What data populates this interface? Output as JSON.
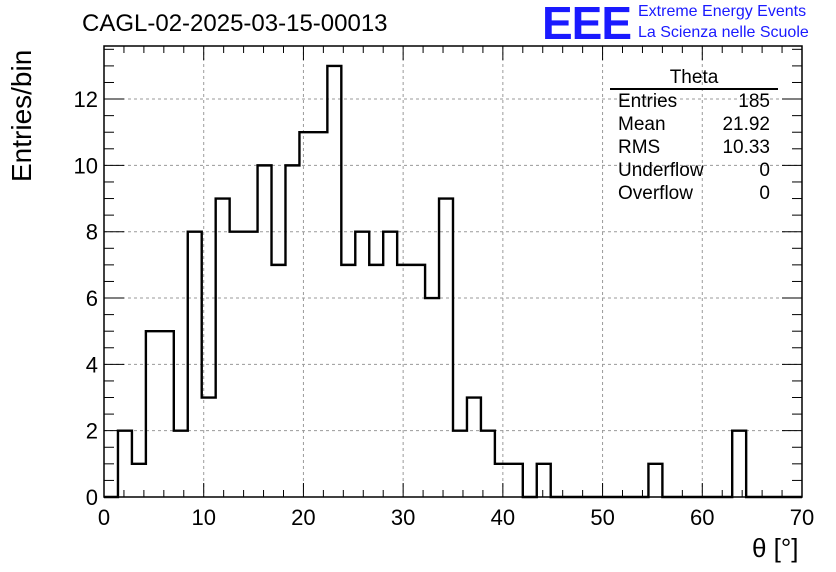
{
  "header": {
    "title": "CAGL-02-2025-03-15-00013",
    "logo_text": "EEE",
    "logo_line1": "Extreme Energy Events",
    "logo_line2": "La Scienza nelle Scuole"
  },
  "stats": {
    "name": "Theta",
    "rows": [
      {
        "label": "Entries",
        "value": "185"
      },
      {
        "label": "Mean",
        "value": "21.92"
      },
      {
        "label": "RMS",
        "value": "10.33"
      },
      {
        "label": "Underflow",
        "value": "0"
      },
      {
        "label": "Overflow",
        "value": "0"
      }
    ]
  },
  "colors": {
    "line": "#000000",
    "grid": "#9a9a9a",
    "logo": "#1a1aff"
  },
  "chart_data": {
    "type": "bar",
    "style": "step-histogram",
    "xlabel": "θ [°]",
    "ylabel": "Entries/bin",
    "xlim": [
      0,
      70
    ],
    "ylim": [
      0,
      13.6
    ],
    "grid": true,
    "legend": "top-right",
    "bin_width": 1.4,
    "bin_edges_start": 0,
    "values": [
      0,
      2,
      1,
      5,
      5,
      2,
      8,
      3,
      9,
      8,
      8,
      10,
      7,
      10,
      11,
      11,
      13,
      7,
      8,
      7,
      8,
      7,
      7,
      6,
      9,
      2,
      3,
      2,
      1,
      1,
      0,
      1,
      0,
      0,
      0,
      0,
      0,
      0,
      0,
      1,
      0,
      0,
      0,
      0,
      0,
      2,
      0,
      0,
      0,
      0
    ],
    "x_ticks": [
      0,
      10,
      20,
      30,
      40,
      50,
      60,
      70
    ],
    "y_ticks": [
      0,
      2,
      4,
      6,
      8,
      10,
      12
    ]
  }
}
